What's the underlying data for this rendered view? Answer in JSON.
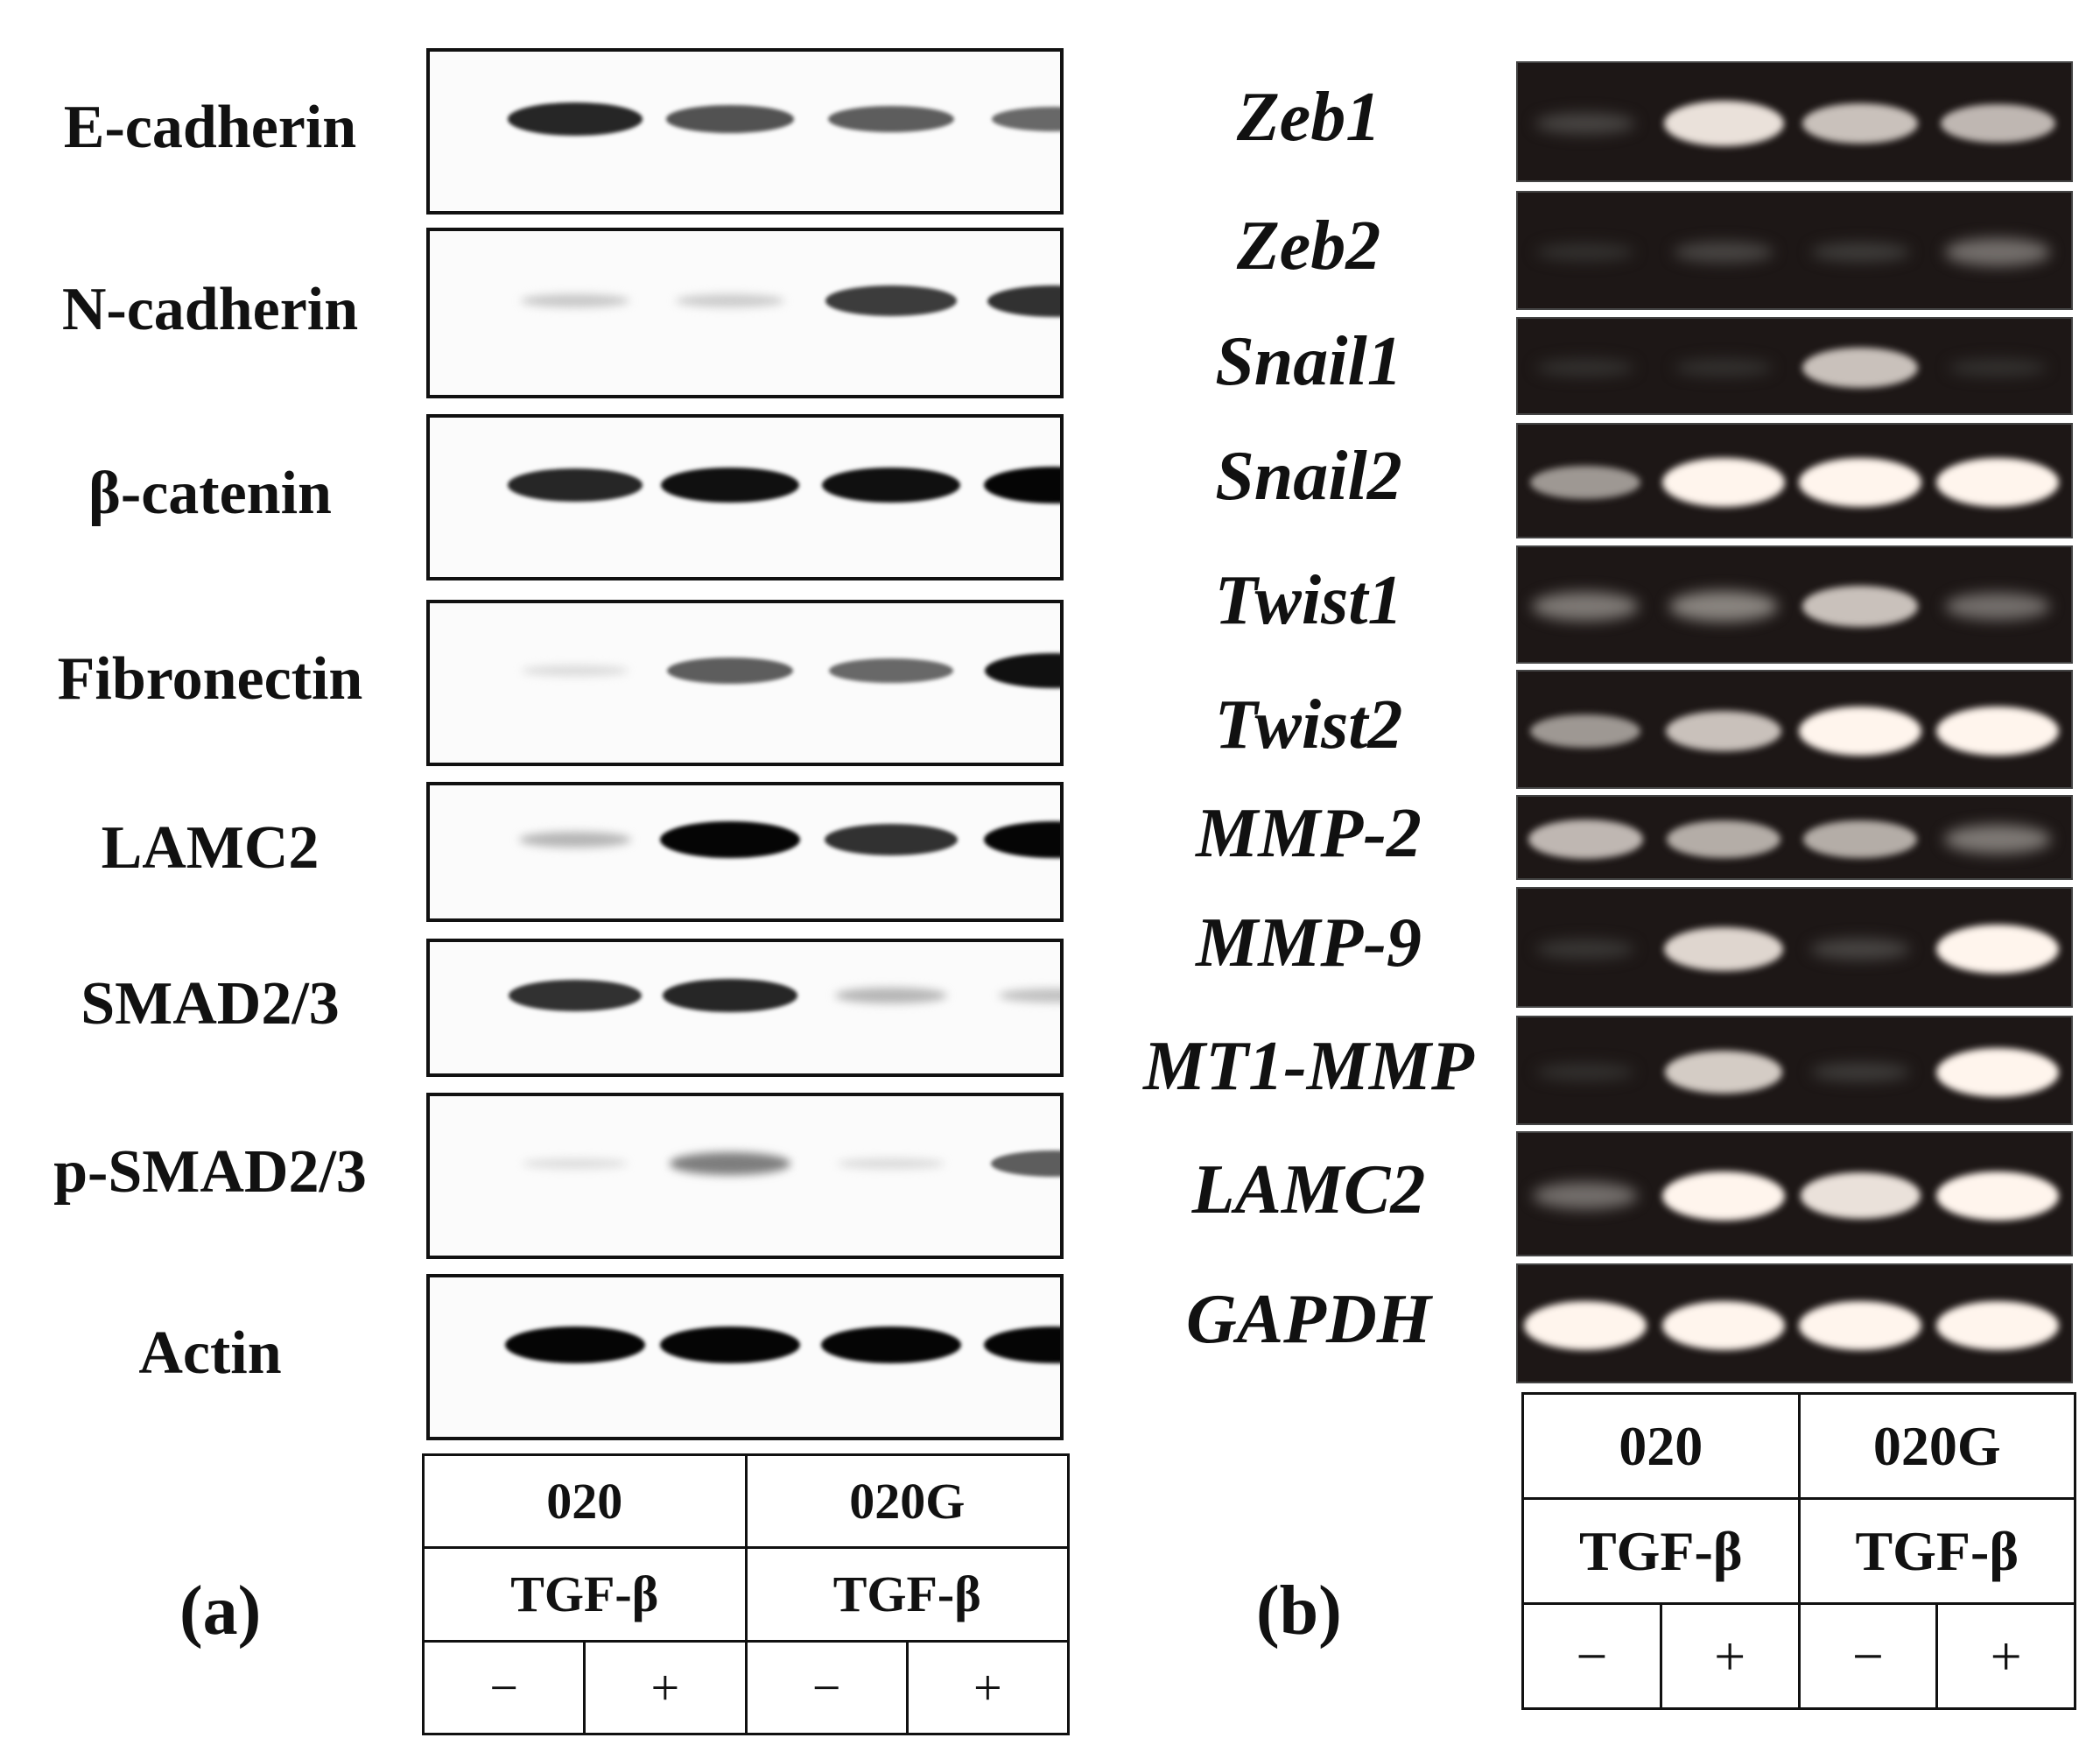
{
  "panel_a": {
    "label": "(a)",
    "proteins": [
      "E-cadherin",
      "N-cadherin",
      "β-catenin",
      "Fibronectin",
      "LAMC2",
      "SMAD2/3",
      "p-SMAD2/3",
      "Actin"
    ],
    "band_intensity": [
      [
        0.85,
        0.65,
        0.6,
        0.55
      ],
      [
        0.12,
        0.1,
        0.75,
        0.8
      ],
      [
        0.85,
        0.95,
        0.95,
        1.0
      ],
      [
        0.03,
        0.6,
        0.55,
        0.95
      ],
      [
        0.2,
        1.0,
        0.8,
        1.0
      ],
      [
        0.8,
        0.85,
        0.2,
        0.15
      ],
      [
        0.02,
        0.45,
        0.03,
        0.6
      ],
      [
        1.0,
        1.0,
        1.0,
        1.0
      ]
    ],
    "conditions": {
      "groups": [
        "020",
        "020G"
      ],
      "treatment_label": "TGF-β",
      "signs": [
        "−",
        "+",
        "−",
        "+"
      ]
    }
  },
  "panel_b": {
    "label": "(b)",
    "genes": [
      "Zeb1",
      "Zeb2",
      "Snail1",
      "Snail2",
      "Twist1",
      "Twist2",
      "MMP-2",
      "MMP-9",
      "MT1-MMP",
      "LAMC2",
      "GAPDH"
    ],
    "band_intensity": [
      [
        0.15,
        0.9,
        0.75,
        0.7
      ],
      [
        0.05,
        0.15,
        0.1,
        0.35
      ],
      [
        0.05,
        0.05,
        0.75,
        0.05
      ],
      [
        0.55,
        1.0,
        1.0,
        1.0
      ],
      [
        0.4,
        0.45,
        0.75,
        0.35
      ],
      [
        0.55,
        0.75,
        1.0,
        1.0
      ],
      [
        0.7,
        0.65,
        0.65,
        0.4
      ],
      [
        0.08,
        0.85,
        0.15,
        1.0
      ],
      [
        0.05,
        0.8,
        0.1,
        1.0
      ],
      [
        0.35,
        1.0,
        0.9,
        1.0
      ],
      [
        1.0,
        1.0,
        1.0,
        1.0
      ]
    ],
    "conditions": {
      "groups": [
        "020",
        "020G"
      ],
      "treatment_label": "TGF-β",
      "signs": [
        "−",
        "+",
        "−",
        "+"
      ]
    }
  }
}
